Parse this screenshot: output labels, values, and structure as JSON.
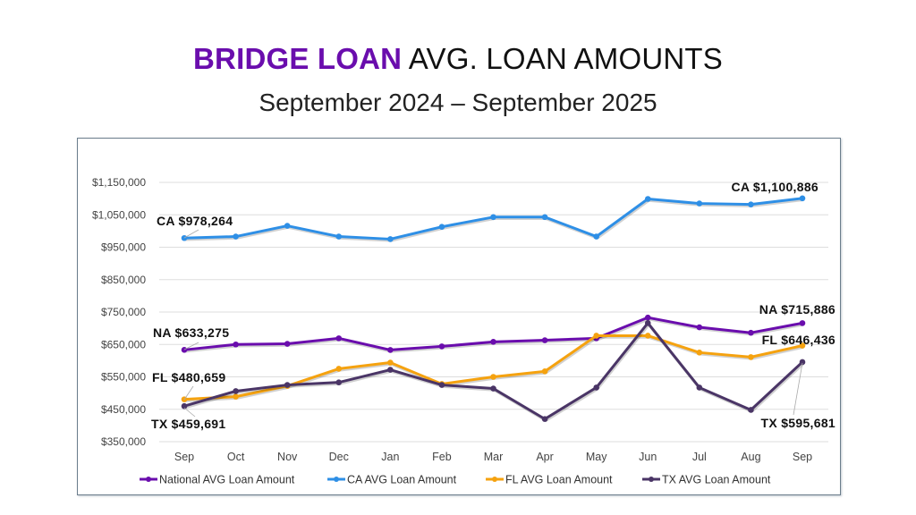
{
  "header": {
    "title_accent": "BRIDGE LOAN",
    "title_rest": " AVG. LOAN AMOUNTS",
    "subtitle": "September 2024 – September 2025"
  },
  "colors": {
    "accent": "#6a0dad",
    "national": "#6a0dad",
    "ca": "#2e8fe6",
    "fl": "#f5a20f",
    "tx": "#4a3566",
    "grid": "#dddddd",
    "frame": "#6b7d8c"
  },
  "chart_data": {
    "type": "line",
    "title": "BRIDGE LOAN AVG. LOAN AMOUNTS",
    "subtitle": "September 2024 – September 2025",
    "xlabel": "",
    "ylabel": "",
    "ylim": [
      350000,
      1150000
    ],
    "yticks": [
      350000,
      450000,
      550000,
      650000,
      750000,
      850000,
      950000,
      1050000,
      1150000
    ],
    "ytick_labels": [
      "$350,000",
      "$450,000",
      "$550,000",
      "$650,000",
      "$750,000",
      "$850,000",
      "$950,000",
      "$1,050,000",
      "$1,150,000"
    ],
    "grid": true,
    "legend_position": "bottom",
    "categories": [
      "Sep",
      "Oct",
      "Nov",
      "Dec",
      "Jan",
      "Feb",
      "Mar",
      "Apr",
      "May",
      "Jun",
      "Jul",
      "Aug",
      "Sep"
    ],
    "series": [
      {
        "name": "National AVG Loan Amount",
        "key": "national",
        "color": "#6a0dad",
        "values": [
          633275,
          650000,
          652000,
          669000,
          633000,
          644000,
          658000,
          663000,
          669000,
          733000,
          703000,
          686000,
          715886
        ]
      },
      {
        "name": "CA AVG Loan Amount",
        "key": "ca",
        "color": "#2e8fe6",
        "values": [
          978264,
          983000,
          1016000,
          983000,
          975000,
          1013000,
          1043000,
          1043000,
          983000,
          1099000,
          1085000,
          1082000,
          1100886
        ]
      },
      {
        "name": "FL AVG Loan Amount",
        "key": "fl",
        "color": "#f5a20f",
        "values": [
          480659,
          489000,
          522000,
          575000,
          594000,
          528000,
          550000,
          567000,
          677000,
          677000,
          625000,
          611000,
          646436
        ]
      },
      {
        "name": "TX AVG Loan Amount",
        "key": "tx",
        "color": "#4a3566",
        "values": [
          459691,
          506000,
          525000,
          533000,
          572000,
          525000,
          514000,
          420000,
          517000,
          716000,
          517000,
          448000,
          595681
        ]
      }
    ],
    "annotations": [
      {
        "text": "CA $978,264",
        "series": "ca",
        "index": 0
      },
      {
        "text": "CA $1,100,886",
        "series": "ca",
        "index": 12
      },
      {
        "text": "NA $633,275",
        "series": "national",
        "index": 0
      },
      {
        "text": "NA $715,886",
        "series": "national",
        "index": 12
      },
      {
        "text": "FL $480,659",
        "series": "fl",
        "index": 0
      },
      {
        "text": "FL $646,436",
        "series": "fl",
        "index": 12
      },
      {
        "text": "TX $459,691",
        "series": "tx",
        "index": 0
      },
      {
        "text": "TX $595,681",
        "series": "tx",
        "index": 12
      }
    ]
  }
}
